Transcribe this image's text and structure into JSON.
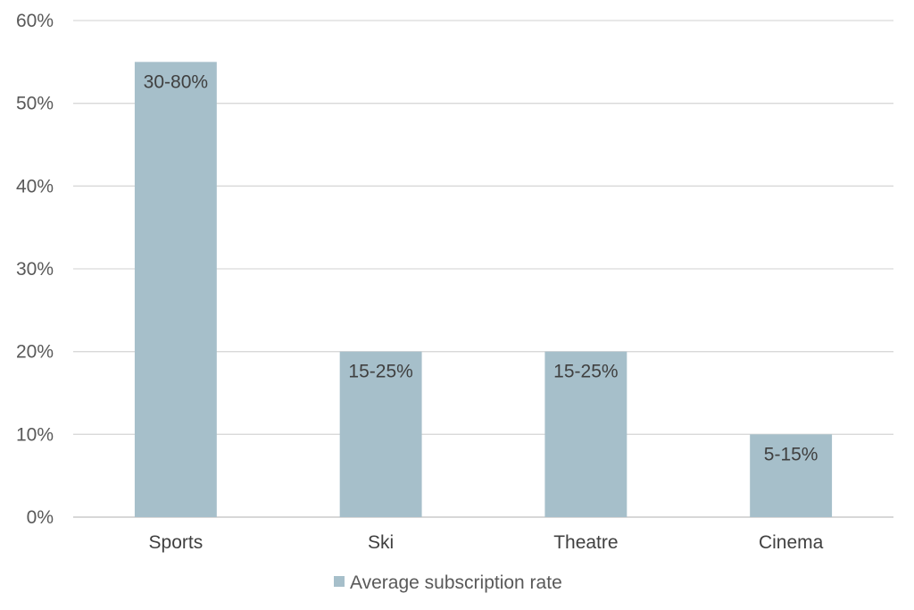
{
  "chart_data": {
    "type": "bar",
    "categories": [
      "Sports",
      "Ski",
      "Theatre",
      "Cinema"
    ],
    "series": [
      {
        "name": "Average subscription rate",
        "values": [
          0.55,
          0.2,
          0.2,
          0.1
        ],
        "data_labels": [
          "30-80%",
          "15-25%",
          "15-25%",
          "5-15%"
        ],
        "color": "#a6bfca"
      }
    ],
    "ylim": [
      0,
      0.6
    ],
    "yticks": [
      0,
      0.1,
      0.2,
      0.3,
      0.4,
      0.5,
      0.6
    ],
    "ytick_labels": [
      "0%",
      "10%",
      "20%",
      "30%",
      "40%",
      "50%",
      "60%"
    ],
    "grid": true,
    "legend_position": "bottom",
    "colors": {
      "grid": "#d9d9d9",
      "axis": "#bfbfbf",
      "text": "#595959"
    }
  }
}
